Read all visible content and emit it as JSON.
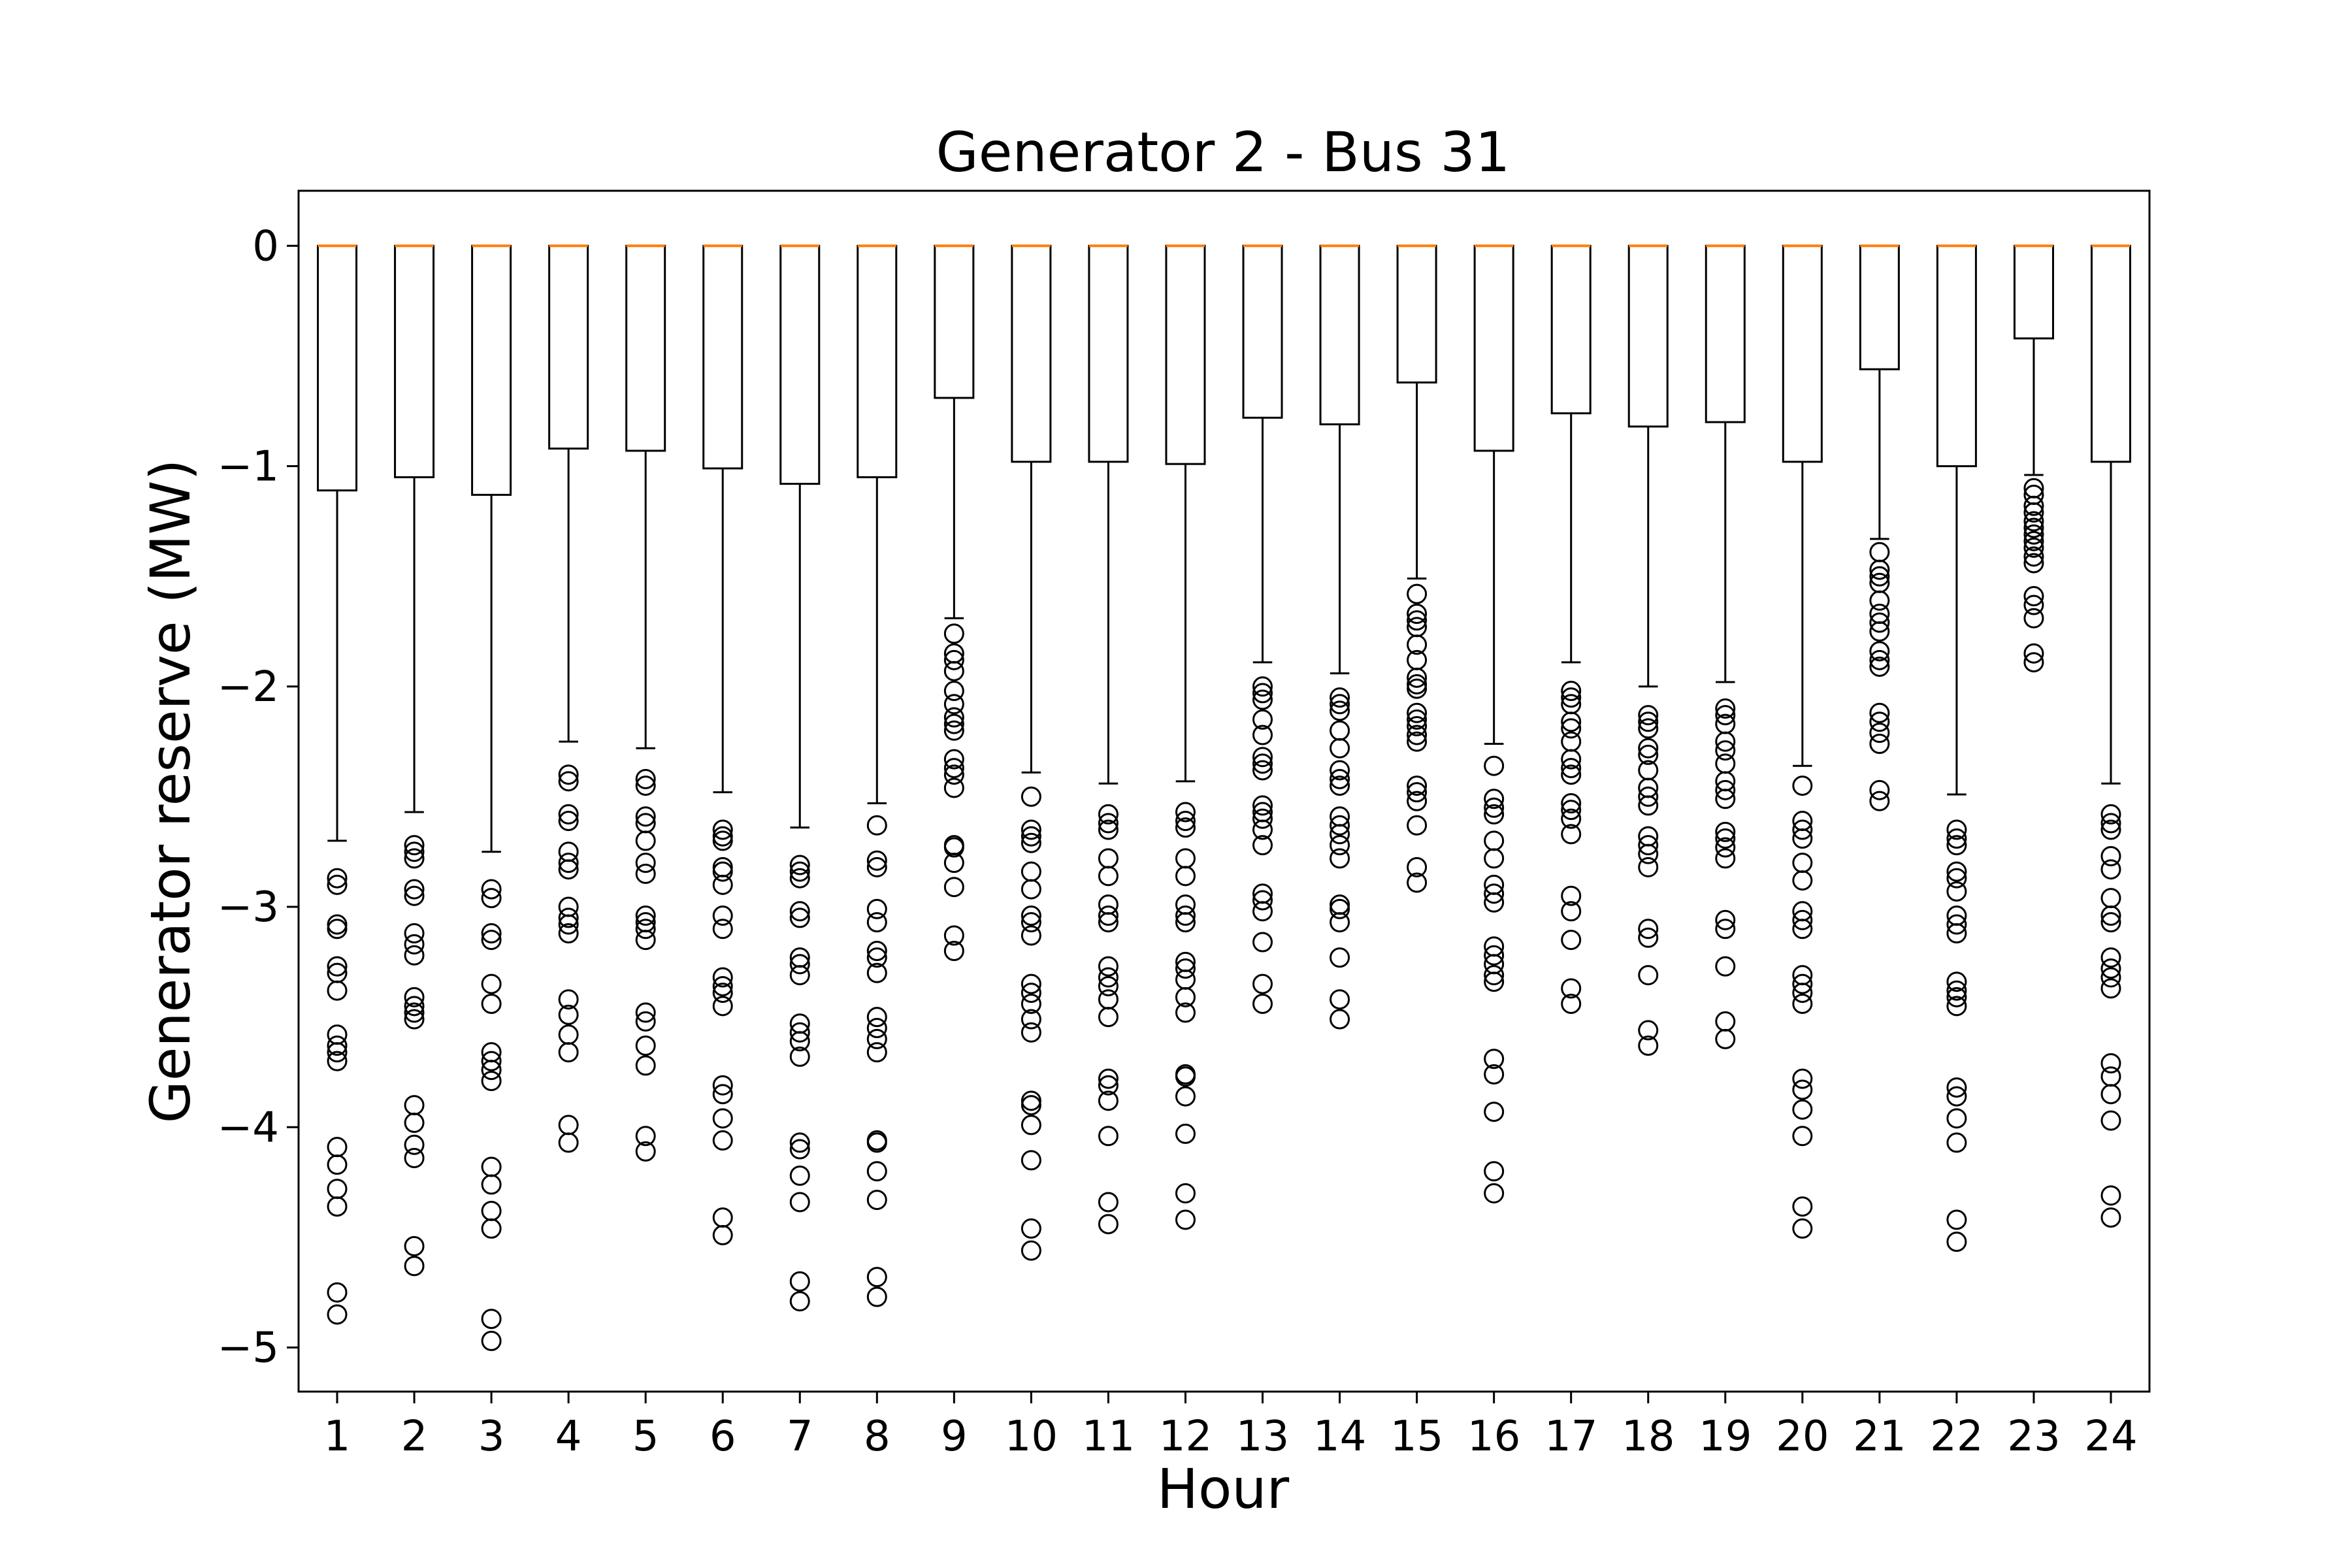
{
  "chart_data": {
    "type": "boxplot",
    "title": "Generator 2 - Bus 31",
    "xlabel": "Hour",
    "ylabel": "Generator reserve (MW)",
    "ylim": [
      -5.2,
      0.25
    ],
    "yticks": [
      0,
      -1,
      -2,
      -3,
      -4,
      -5
    ],
    "ytick_labels": [
      "0",
      "−1",
      "−2",
      "−3",
      "−4",
      "−5"
    ],
    "categories": [
      "1",
      "2",
      "3",
      "4",
      "5",
      "6",
      "7",
      "8",
      "9",
      "10",
      "11",
      "12",
      "13",
      "14",
      "15",
      "16",
      "17",
      "18",
      "19",
      "20",
      "21",
      "22",
      "23",
      "24"
    ],
    "colors": {
      "box": "#000000",
      "median": "#ff7f0e",
      "frame": "#000000"
    },
    "grid": false,
    "legend": "none",
    "boxes": [
      {
        "q3": 0,
        "median": 0,
        "q1": -1.11,
        "whisker_high": 0,
        "whisker_low": -2.7,
        "outliers": [
          -2.87,
          -2.9,
          -3.08,
          -3.1,
          -3.27,
          -3.3,
          -3.38,
          -3.58,
          -3.63,
          -3.66,
          -3.7,
          -4.09,
          -4.17,
          -4.28,
          -4.36,
          -4.75,
          -4.85
        ]
      },
      {
        "q3": 0,
        "median": 0,
        "q1": -1.05,
        "whisker_high": 0,
        "whisker_low": -2.57,
        "outliers": [
          -2.72,
          -2.75,
          -2.78,
          -2.92,
          -2.95,
          -3.12,
          -3.17,
          -3.22,
          -3.41,
          -3.45,
          -3.48,
          -3.51,
          -3.9,
          -3.98,
          -4.08,
          -4.14,
          -4.54,
          -4.63
        ]
      },
      {
        "q3": 0,
        "median": 0,
        "q1": -1.13,
        "whisker_high": 0,
        "whisker_low": -2.75,
        "outliers": [
          -2.92,
          -2.96,
          -3.12,
          -3.15,
          -3.35,
          -3.44,
          -3.66,
          -3.7,
          -3.74,
          -3.79,
          -4.18,
          -4.26,
          -4.38,
          -4.46,
          -4.87,
          -4.97
        ]
      },
      {
        "q3": 0,
        "median": 0,
        "q1": -0.92,
        "whisker_high": 0,
        "whisker_low": -2.25,
        "outliers": [
          -2.4,
          -2.43,
          -2.58,
          -2.61,
          -2.75,
          -2.8,
          -2.83,
          -3.0,
          -3.05,
          -3.08,
          -3.12,
          -3.42,
          -3.49,
          -3.58,
          -3.66,
          -3.99,
          -4.07
        ]
      },
      {
        "q3": 0,
        "median": 0,
        "q1": -0.93,
        "whisker_high": 0,
        "whisker_low": -2.28,
        "outliers": [
          -2.42,
          -2.45,
          -2.59,
          -2.62,
          -2.7,
          -2.8,
          -2.85,
          -3.04,
          -3.07,
          -3.1,
          -3.15,
          -3.48,
          -3.52,
          -3.63,
          -3.72,
          -4.04,
          -4.11
        ]
      },
      {
        "q3": 0,
        "median": 0,
        "q1": -1.01,
        "whisker_high": 0,
        "whisker_low": -2.48,
        "outliers": [
          -2.65,
          -2.68,
          -2.7,
          -2.82,
          -2.84,
          -2.9,
          -3.04,
          -3.1,
          -3.32,
          -3.36,
          -3.39,
          -3.45,
          -3.81,
          -3.85,
          -3.96,
          -4.06,
          -4.41,
          -4.49
        ]
      },
      {
        "q3": 0,
        "median": 0,
        "q1": -1.08,
        "whisker_high": 0,
        "whisker_low": -2.64,
        "outliers": [
          -2.81,
          -2.84,
          -2.87,
          -3.02,
          -3.05,
          -3.23,
          -3.26,
          -3.31,
          -3.53,
          -3.57,
          -3.61,
          -3.68,
          -4.07,
          -4.1,
          -4.22,
          -4.34,
          -4.7,
          -4.79
        ]
      },
      {
        "q3": 0,
        "median": 0,
        "q1": -1.05,
        "whisker_high": 0,
        "whisker_low": -2.53,
        "outliers": [
          -2.63,
          -2.79,
          -2.82,
          -3.01,
          -3.07,
          -3.2,
          -3.23,
          -3.3,
          -3.5,
          -3.55,
          -3.6,
          -3.66,
          -4.06,
          -4.07,
          -4.2,
          -4.33,
          -4.68,
          -4.77
        ]
      },
      {
        "q3": 0,
        "median": 0,
        "q1": -0.69,
        "whisker_high": 0,
        "whisker_low": -1.69,
        "outliers": [
          -1.76,
          -1.85,
          -1.88,
          -1.93,
          -2.02,
          -2.08,
          -2.14,
          -2.17,
          -2.2,
          -2.33,
          -2.37,
          -2.4,
          -2.46,
          -2.72,
          -2.73,
          -2.8,
          -2.91,
          -3.13,
          -3.2
        ]
      },
      {
        "q3": 0,
        "median": 0,
        "q1": -0.98,
        "whisker_high": 0,
        "whisker_low": -2.39,
        "outliers": [
          -2.5,
          -2.65,
          -2.68,
          -2.71,
          -2.84,
          -2.92,
          -3.04,
          -3.07,
          -3.13,
          -3.35,
          -3.39,
          -3.44,
          -3.51,
          -3.57,
          -3.88,
          -3.9,
          -3.99,
          -4.15,
          -4.46,
          -4.56
        ]
      },
      {
        "q3": 0,
        "median": 0,
        "q1": -0.98,
        "whisker_high": 0,
        "whisker_low": -2.44,
        "outliers": [
          -2.58,
          -2.62,
          -2.65,
          -2.78,
          -2.86,
          -2.99,
          -3.04,
          -3.07,
          -3.27,
          -3.32,
          -3.36,
          -3.42,
          -3.5,
          -3.78,
          -3.81,
          -3.88,
          -4.04,
          -4.34,
          -4.44
        ]
      },
      {
        "q3": 0,
        "median": 0,
        "q1": -0.99,
        "whisker_high": 0,
        "whisker_low": -2.43,
        "outliers": [
          -2.57,
          -2.61,
          -2.64,
          -2.78,
          -2.86,
          -2.99,
          -3.04,
          -3.07,
          -3.25,
          -3.28,
          -3.33,
          -3.41,
          -3.48,
          -3.76,
          -3.77,
          -3.86,
          -4.03,
          -4.3,
          -4.42
        ]
      },
      {
        "q3": 0,
        "median": 0,
        "q1": -0.78,
        "whisker_high": 0,
        "whisker_low": -1.89,
        "outliers": [
          -2.0,
          -2.03,
          -2.06,
          -2.15,
          -2.22,
          -2.32,
          -2.35,
          -2.38,
          -2.54,
          -2.57,
          -2.6,
          -2.65,
          -2.72,
          -2.94,
          -2.97,
          -3.02,
          -3.16,
          -3.35,
          -3.44
        ]
      },
      {
        "q3": 0,
        "median": 0,
        "q1": -0.81,
        "whisker_high": 0,
        "whisker_low": -1.94,
        "outliers": [
          -2.05,
          -2.08,
          -2.11,
          -2.2,
          -2.28,
          -2.38,
          -2.42,
          -2.45,
          -2.59,
          -2.63,
          -2.67,
          -2.72,
          -2.78,
          -2.99,
          -3.01,
          -3.07,
          -3.23,
          -3.42,
          -3.51
        ]
      },
      {
        "q3": 0,
        "median": 0,
        "q1": -0.62,
        "whisker_high": 0,
        "whisker_low": -1.51,
        "outliers": [
          -1.58,
          -1.67,
          -1.7,
          -1.73,
          -1.81,
          -1.88,
          -1.96,
          -1.99,
          -2.01,
          -2.12,
          -2.15,
          -2.18,
          -2.22,
          -2.25,
          -2.45,
          -2.48,
          -2.52,
          -2.63,
          -2.82,
          -2.89
        ]
      },
      {
        "q3": 0,
        "median": 0,
        "q1": -0.93,
        "whisker_high": 0,
        "whisker_low": -2.26,
        "outliers": [
          -2.36,
          -2.51,
          -2.55,
          -2.58,
          -2.7,
          -2.78,
          -2.9,
          -2.94,
          -2.98,
          -3.18,
          -3.22,
          -3.26,
          -3.31,
          -3.34,
          -3.69,
          -3.76,
          -3.93,
          -4.2,
          -4.3
        ]
      },
      {
        "q3": 0,
        "median": 0,
        "q1": -0.76,
        "whisker_high": 0,
        "whisker_low": -1.89,
        "outliers": [
          -2.02,
          -2.05,
          -2.08,
          -2.16,
          -2.19,
          -2.25,
          -2.33,
          -2.37,
          -2.4,
          -2.53,
          -2.56,
          -2.6,
          -2.67,
          -2.95,
          -3.02,
          -3.15,
          -3.37,
          -3.44
        ]
      },
      {
        "q3": 0,
        "median": 0,
        "q1": -0.82,
        "whisker_high": 0,
        "whisker_low": -2.0,
        "outliers": [
          -2.13,
          -2.16,
          -2.19,
          -2.28,
          -2.31,
          -2.38,
          -2.46,
          -2.5,
          -2.54,
          -2.68,
          -2.72,
          -2.76,
          -2.82,
          -3.1,
          -3.14,
          -3.31,
          -3.56,
          -3.63
        ]
      },
      {
        "q3": 0,
        "median": 0,
        "q1": -0.8,
        "whisker_high": 0,
        "whisker_low": -1.98,
        "outliers": [
          -2.1,
          -2.13,
          -2.17,
          -2.25,
          -2.29,
          -2.35,
          -2.43,
          -2.47,
          -2.51,
          -2.66,
          -2.69,
          -2.73,
          -2.78,
          -3.06,
          -3.1,
          -3.27,
          -3.52,
          -3.6
        ]
      },
      {
        "q3": 0,
        "median": 0,
        "q1": -0.98,
        "whisker_high": 0,
        "whisker_low": -2.36,
        "outliers": [
          -2.45,
          -2.61,
          -2.65,
          -2.69,
          -2.8,
          -2.88,
          -3.02,
          -3.06,
          -3.1,
          -3.31,
          -3.35,
          -3.39,
          -3.44,
          -3.78,
          -3.83,
          -3.92,
          -4.04,
          -4.36,
          -4.46
        ]
      },
      {
        "q3": 0,
        "median": 0,
        "q1": -0.56,
        "whisker_high": 0,
        "whisker_low": -1.33,
        "outliers": [
          -1.39,
          -1.47,
          -1.5,
          -1.53,
          -1.61,
          -1.67,
          -1.71,
          -1.75,
          -1.84,
          -1.88,
          -1.91,
          -2.12,
          -2.16,
          -2.21,
          -2.26,
          -2.47,
          -2.52
        ]
      },
      {
        "q3": 0,
        "median": 0,
        "q1": -1.0,
        "whisker_high": 0,
        "whisker_low": -2.49,
        "outliers": [
          -2.65,
          -2.69,
          -2.72,
          -2.84,
          -2.87,
          -2.93,
          -3.04,
          -3.08,
          -3.12,
          -3.34,
          -3.38,
          -3.41,
          -3.45,
          -3.82,
          -3.86,
          -3.96,
          -4.07,
          -4.42,
          -4.52
        ]
      },
      {
        "q3": 0,
        "median": 0,
        "q1": -0.42,
        "whisker_high": 0,
        "whisker_low": -1.04,
        "outliers": [
          -1.1,
          -1.13,
          -1.18,
          -1.21,
          -1.25,
          -1.28,
          -1.31,
          -1.34,
          -1.37,
          -1.41,
          -1.44,
          -1.59,
          -1.63,
          -1.69,
          -1.85,
          -1.89
        ]
      },
      {
        "q3": 0,
        "median": 0,
        "q1": -0.98,
        "whisker_high": 0,
        "whisker_low": -2.44,
        "outliers": [
          -2.58,
          -2.62,
          -2.65,
          -2.77,
          -2.83,
          -2.96,
          -3.04,
          -3.07,
          -3.23,
          -3.28,
          -3.32,
          -3.37,
          -3.71,
          -3.77,
          -3.85,
          -3.97,
          -4.31,
          -4.41
        ]
      }
    ]
  }
}
